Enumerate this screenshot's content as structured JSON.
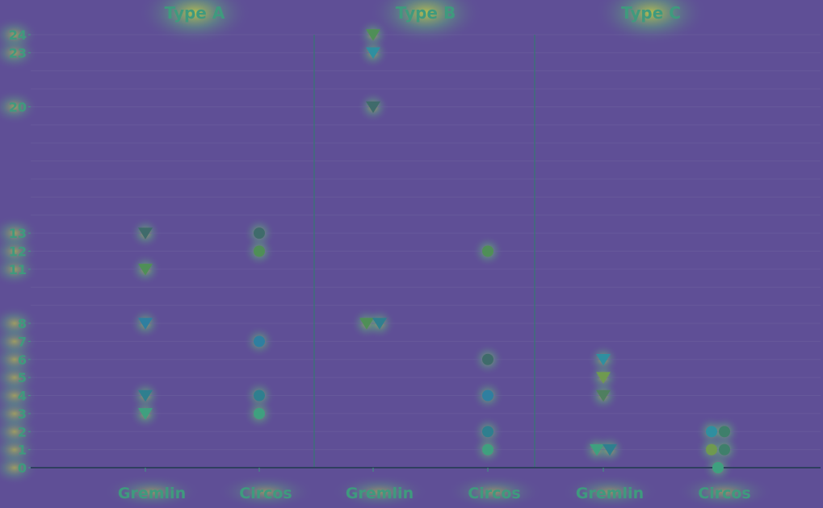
{
  "chart_data": {
    "type": "scatter",
    "panels": [
      {
        "title": "Type A",
        "categories": [
          "Gremlin",
          "Circos"
        ],
        "points": [
          {
            "category": "Gremlin",
            "y": 13,
            "marker": "triangle",
            "color": "#3f6b6b"
          },
          {
            "category": "Gremlin",
            "y": 11,
            "marker": "triangle",
            "color": "#4f8f57"
          },
          {
            "category": "Gremlin",
            "y": 8,
            "marker": "triangle",
            "color": "#2f7fa0"
          },
          {
            "category": "Gremlin",
            "y": 4,
            "marker": "triangle",
            "color": "#2f7f8f"
          },
          {
            "category": "Gremlin",
            "y": 3,
            "marker": "triangle",
            "color": "#3fa07f"
          },
          {
            "category": "Circos",
            "y": 13,
            "marker": "circle",
            "color": "#3f6b6b"
          },
          {
            "category": "Circos",
            "y": 12,
            "marker": "circle",
            "color": "#4f8f57"
          },
          {
            "category": "Circos",
            "y": 7,
            "marker": "circle",
            "color": "#2f7fa0"
          },
          {
            "category": "Circos",
            "y": 4,
            "marker": "circle",
            "color": "#2f7f8f"
          },
          {
            "category": "Circos",
            "y": 3,
            "marker": "circle",
            "color": "#3fa07f"
          }
        ]
      },
      {
        "title": "Type B",
        "categories": [
          "Gremlin",
          "Circos"
        ],
        "points": [
          {
            "category": "Gremlin",
            "y": 24,
            "marker": "triangle",
            "color": "#4f8f57"
          },
          {
            "category": "Gremlin",
            "y": 23,
            "marker": "triangle",
            "color": "#2f8fa0"
          },
          {
            "category": "Gremlin",
            "y": 20,
            "marker": "triangle",
            "color": "#3f6b6b"
          },
          {
            "category": "Gremlin",
            "y": 8,
            "marker": "triangle",
            "color": "#4f8f57",
            "offset": -1
          },
          {
            "category": "Gremlin",
            "y": 8,
            "marker": "triangle",
            "color": "#2f7f8f",
            "offset": 1
          },
          {
            "category": "Circos",
            "y": 12,
            "marker": "circle",
            "color": "#4f8f57"
          },
          {
            "category": "Circos",
            "y": 6,
            "marker": "circle",
            "color": "#3f6b6b"
          },
          {
            "category": "Circos",
            "y": 4,
            "marker": "circle",
            "color": "#2f7fa0"
          },
          {
            "category": "Circos",
            "y": 2,
            "marker": "circle",
            "color": "#2f7f8f"
          },
          {
            "category": "Circos",
            "y": 1,
            "marker": "circle",
            "color": "#3fa07f"
          }
        ]
      },
      {
        "title": "Type C",
        "categories": [
          "Gremlin",
          "Circos"
        ],
        "points": [
          {
            "category": "Gremlin",
            "y": 6,
            "marker": "triangle",
            "color": "#2f8fa0"
          },
          {
            "category": "Gremlin",
            "y": 5,
            "marker": "triangle",
            "color": "#6f9a4f"
          },
          {
            "category": "Gremlin",
            "y": 4,
            "marker": "triangle",
            "color": "#4f7f5f"
          },
          {
            "category": "Gremlin",
            "y": 1,
            "marker": "triangle",
            "color": "#3fa07f",
            "offset": -1
          },
          {
            "category": "Gremlin",
            "y": 1,
            "marker": "triangle",
            "color": "#2f7f8f",
            "offset": 1
          },
          {
            "category": "Circos",
            "y": 2,
            "marker": "circle",
            "color": "#2f8fa0",
            "offset": -1
          },
          {
            "category": "Circos",
            "y": 2,
            "marker": "circle",
            "color": "#3f7f6b",
            "offset": 1
          },
          {
            "category": "Circos",
            "y": 1,
            "marker": "circle",
            "color": "#6f9a4f",
            "offset": -1
          },
          {
            "category": "Circos",
            "y": 1,
            "marker": "circle",
            "color": "#3f7f6b",
            "offset": 1
          },
          {
            "category": "Circos",
            "y": 0,
            "marker": "circle",
            "color": "#3fa07f"
          }
        ]
      }
    ],
    "yticks": [
      0,
      1,
      2,
      3,
      4,
      5,
      6,
      7,
      8,
      11,
      12,
      13,
      20,
      23,
      24
    ],
    "ylim": [
      0,
      24
    ],
    "grid": true,
    "colors": {
      "background": "#5f4f96",
      "text": "#3f9a7e",
      "axis": "#2f3f5f",
      "divider": "#3f6f7a",
      "grid": "#6e62a0",
      "highlight": "#c8d040"
    }
  }
}
